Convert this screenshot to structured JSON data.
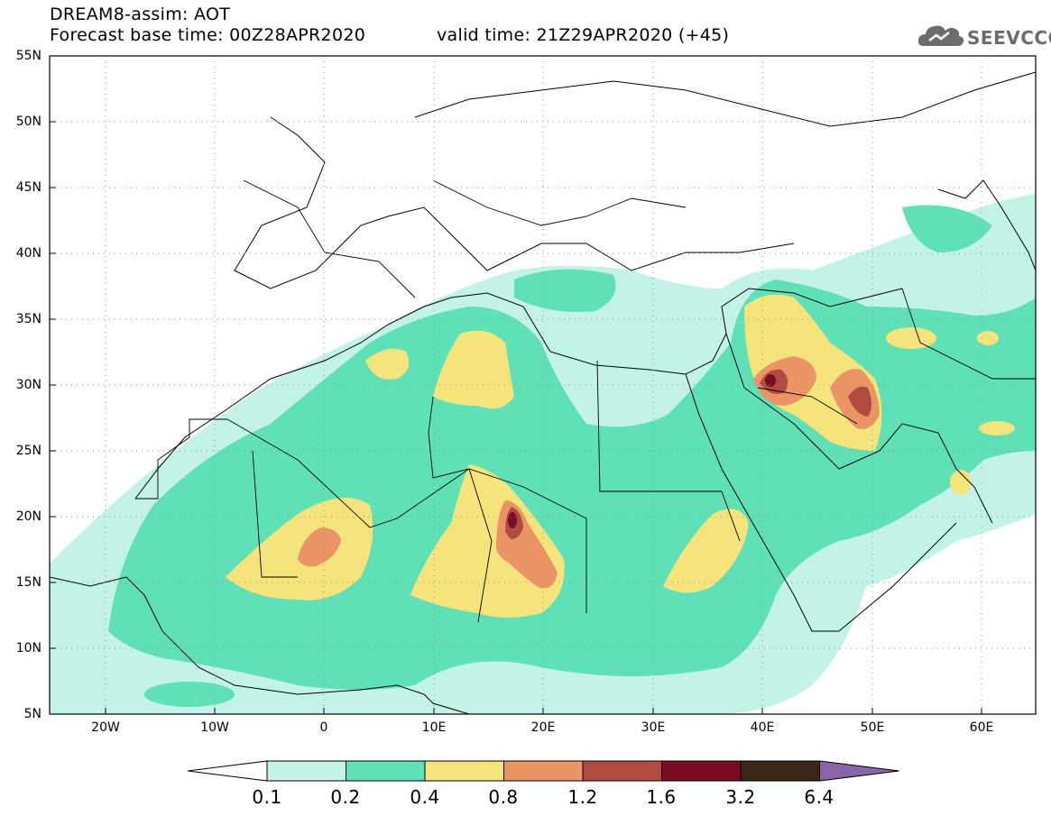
{
  "header": {
    "line1": "DREAM8-assim: AOT",
    "line2": "Forecast base time: 00Z28APR2020",
    "valid": "valid time: 21Z29APR2020 (+45)"
  },
  "logo": {
    "text": "SEEVCCC",
    "icon": "cloud-logo-icon"
  },
  "map": {
    "lat_labels": [
      "55N",
      "50N",
      "45N",
      "40N",
      "35N",
      "30N",
      "25N",
      "20N",
      "15N",
      "10N",
      "5N"
    ],
    "lon_labels": [
      "20W",
      "10W",
      "0",
      "10E",
      "20E",
      "30E",
      "40E",
      "50E",
      "60E"
    ],
    "extent": {
      "lon_min": -25,
      "lon_max": 65,
      "lat_min": 5,
      "lat_max": 55
    },
    "gridlines": "dotted"
  },
  "colorbar": {
    "levels": [
      "0.1",
      "0.2",
      "0.4",
      "0.8",
      "1.2",
      "1.6",
      "3.2",
      "6.4"
    ],
    "colors": [
      "#ffffff",
      "#c3f2e8",
      "#5fe0b6",
      "#f5e37b",
      "#eb9566",
      "#b14a41",
      "#7a0c23",
      "#3c2615",
      "#8a64a8"
    ]
  }
}
